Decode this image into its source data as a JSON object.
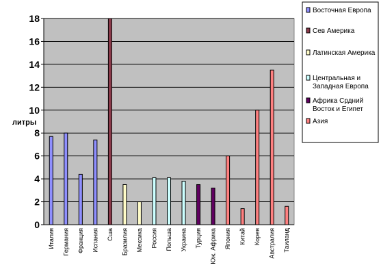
{
  "chart_data": {
    "type": "bar",
    "ylabel": "литры",
    "ylim": [
      0,
      18
    ],
    "yticks": [
      0,
      2,
      4,
      6,
      8,
      10,
      12,
      14,
      16,
      18
    ],
    "grid": true,
    "legend_position": "right",
    "categories": [
      "Италия",
      "Германия",
      "Франция",
      "Испания",
      "Сша",
      "Бразилия",
      "Мексика",
      "Россия",
      "Польша",
      "Украина",
      "Турция",
      "Юж. Африка",
      "Япония",
      "Китай",
      "Корея",
      "Австралия",
      "Таиланд"
    ],
    "series": [
      {
        "name": "Восточная Европа",
        "color": "#8f8fff",
        "values": [
          7.7,
          8.0,
          4.4,
          7.4,
          null,
          null,
          null,
          null,
          null,
          null,
          null,
          null,
          null,
          null,
          null,
          null,
          null
        ]
      },
      {
        "name": "Сев Америка",
        "color": "#8b3a4a",
        "values": [
          null,
          null,
          null,
          null,
          18.0,
          null,
          null,
          null,
          null,
          null,
          null,
          null,
          null,
          null,
          null,
          null,
          null
        ]
      },
      {
        "name": "Латинская Америка",
        "color": "#fffcc8",
        "values": [
          null,
          null,
          null,
          null,
          null,
          3.5,
          2.0,
          null,
          null,
          null,
          null,
          null,
          null,
          null,
          null,
          null,
          null
        ]
      },
      {
        "name": "Центральная и Западная Европа",
        "color": "#ccffff",
        "values": [
          null,
          null,
          null,
          null,
          null,
          null,
          null,
          4.1,
          4.1,
          3.8,
          null,
          null,
          null,
          null,
          null,
          null,
          null
        ]
      },
      {
        "name": "Африка Срдний Восток и Египет",
        "color": "#600060",
        "values": [
          null,
          null,
          null,
          null,
          null,
          null,
          null,
          null,
          null,
          null,
          3.5,
          3.2,
          null,
          null,
          null,
          null,
          null
        ]
      },
      {
        "name": "Азия",
        "color": "#ff8080",
        "values": [
          null,
          null,
          null,
          null,
          null,
          null,
          null,
          null,
          null,
          null,
          null,
          null,
          6.0,
          1.4,
          10.0,
          13.5,
          1.6
        ]
      }
    ]
  }
}
